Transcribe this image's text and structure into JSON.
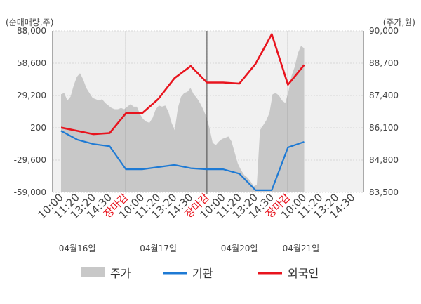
{
  "chart_data": {
    "type": "line",
    "left_axis_title": "(순매매량,주)",
    "right_axis_title": "(주가,원)",
    "left_ticks": [
      "88,000",
      "58,600",
      "29,200",
      "-200",
      "-29,600",
      "-59,000"
    ],
    "right_ticks": [
      "90,000",
      "88,700",
      "87,400",
      "86,100",
      "84,800",
      "83,500"
    ],
    "left_ylim": [
      -59000,
      88000
    ],
    "right_ylim": [
      83500,
      90000
    ],
    "grid": true,
    "x_tick_labels": [
      {
        "label": "10:00",
        "pos": 0,
        "red": false
      },
      {
        "label": "11:20",
        "pos": 1,
        "red": false
      },
      {
        "label": "13:20",
        "pos": 2,
        "red": false
      },
      {
        "label": "14:30",
        "pos": 3,
        "red": false
      },
      {
        "label": "장마감",
        "pos": 4,
        "red": true
      },
      {
        "label": "10:00",
        "pos": 5,
        "red": false
      },
      {
        "label": "11:20",
        "pos": 6,
        "red": false
      },
      {
        "label": "13:20",
        "pos": 7,
        "red": false
      },
      {
        "label": "14:30",
        "pos": 8,
        "red": false
      },
      {
        "label": "장마감",
        "pos": 9,
        "red": true
      },
      {
        "label": "10:00",
        "pos": 10,
        "red": false
      },
      {
        "label": "11:20",
        "pos": 11,
        "red": false
      },
      {
        "label": "13:20",
        "pos": 12,
        "red": false
      },
      {
        "label": "14:30",
        "pos": 13,
        "red": false
      },
      {
        "label": "장마감",
        "pos": 14,
        "red": true
      },
      {
        "label": "10:00",
        "pos": 15,
        "red": false
      },
      {
        "label": "11:20",
        "pos": 16,
        "red": false
      },
      {
        "label": "13:20",
        "pos": 17,
        "red": false
      },
      {
        "label": "14:30",
        "pos": 18,
        "red": false
      }
    ],
    "day_labels": [
      {
        "label": "04월16일",
        "pos": 1
      },
      {
        "label": "04월17일",
        "pos": 6
      },
      {
        "label": "04월20일",
        "pos": 11
      },
      {
        "label": "04월21일",
        "pos": 14.8
      }
    ],
    "day_separators": [
      4,
      9,
      14
    ],
    "legend": [
      {
        "label": "주가",
        "color": "#c8c8c8",
        "kind": "area"
      },
      {
        "label": "기관",
        "color": "#1e7ad4",
        "kind": "line"
      },
      {
        "label": "외국인",
        "color": "#e8141e",
        "kind": "line"
      }
    ],
    "series": [
      {
        "name": "기관",
        "color": "#1e7ad4",
        "x": [
          0,
          1,
          2,
          3,
          4,
          5,
          6,
          7,
          8,
          9,
          10,
          11,
          12,
          13,
          14,
          15
        ],
        "values": [
          -3000,
          -11000,
          -15000,
          -17000,
          -38000,
          -38000,
          -36000,
          -34000,
          -37000,
          -38000,
          -38000,
          -42000,
          -57000,
          -57000,
          -18000,
          -13000
        ]
      },
      {
        "name": "외국인",
        "color": "#e8141e",
        "x": [
          0,
          1,
          2,
          3,
          4,
          5,
          6,
          7,
          8,
          9,
          10,
          11,
          12,
          13,
          14,
          15
        ],
        "values": [
          0,
          -3000,
          -6000,
          -5000,
          13000,
          13000,
          26000,
          45000,
          56000,
          41000,
          41000,
          40000,
          58000,
          85000,
          39000,
          57000
        ]
      },
      {
        "name": "주가",
        "color": "#c8c8c8",
        "x_range": [
          0,
          15
        ],
        "values": [
          87450,
          87500,
          87200,
          87350,
          87800,
          88150,
          88300,
          88050,
          87700,
          87500,
          87300,
          87250,
          87200,
          87250,
          87100,
          87000,
          86900,
          86850,
          86850,
          86900,
          86850,
          86950,
          87050,
          86950,
          86950,
          86650,
          86450,
          86350,
          86300,
          86500,
          86850,
          87000,
          86950,
          87000,
          86750,
          86300,
          86000,
          86900,
          87350,
          87500,
          87550,
          87700,
          87450,
          87300,
          87100,
          86850,
          86550,
          86100,
          85500,
          85400,
          85550,
          85650,
          85700,
          85750,
          85550,
          85100,
          84650,
          84400,
          84200,
          84100,
          83950,
          83750,
          83800,
          86000,
          86200,
          86400,
          86700,
          87450,
          87500,
          87400,
          87200,
          87100,
          87550,
          88200,
          88550,
          89100,
          89400,
          89300
        ]
      }
    ]
  }
}
